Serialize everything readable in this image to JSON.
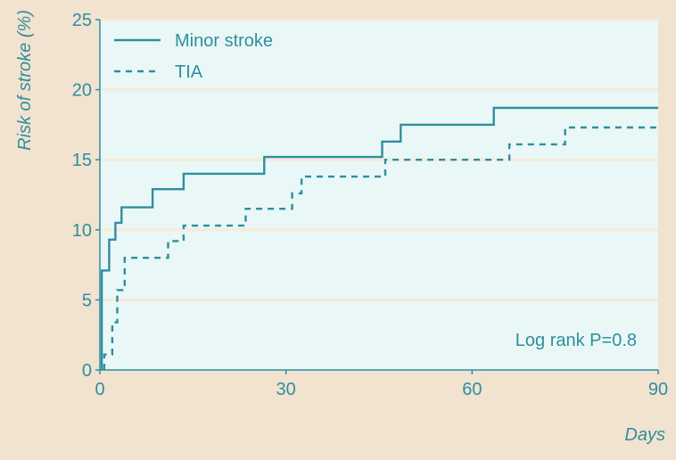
{
  "colors": {
    "background": "#f1e3cf",
    "plot_background": "#e9f8f6",
    "gridline": "#f6ead8",
    "axis": "#2f8ea0",
    "series_line": "#2f8ea0",
    "text": "#2f8ea0"
  },
  "chart_data": {
    "type": "line",
    "title": "",
    "xlabel": "Days",
    "ylabel": "Risk of stroke (%)",
    "xlim": [
      0,
      90
    ],
    "ylim": [
      0,
      25
    ],
    "x_ticks": [
      0,
      30,
      60,
      90
    ],
    "y_ticks": [
      0,
      5,
      10,
      15,
      20,
      25
    ],
    "grid": "horizontal",
    "legend_position": "top-left",
    "annotation": "Log rank P=0.8",
    "series": [
      {
        "name": "Minor stroke",
        "line_style": "solid",
        "points": [
          [
            0.3,
            0
          ],
          [
            0.3,
            7.1
          ],
          [
            1.5,
            7.1
          ],
          [
            1.5,
            9.3
          ],
          [
            2.5,
            9.3
          ],
          [
            2.5,
            10.5
          ],
          [
            3.5,
            10.5
          ],
          [
            3.5,
            11.6
          ],
          [
            8.5,
            11.6
          ],
          [
            8.5,
            12.9
          ],
          [
            13.5,
            12.9
          ],
          [
            13.5,
            14.0
          ],
          [
            26.5,
            14.0
          ],
          [
            26.5,
            15.2
          ],
          [
            45.5,
            15.2
          ],
          [
            45.5,
            16.3
          ],
          [
            48.5,
            16.3
          ],
          [
            48.5,
            17.5
          ],
          [
            63.5,
            17.5
          ],
          [
            63.5,
            18.7
          ],
          [
            90,
            18.7
          ]
        ]
      },
      {
        "name": "TIA",
        "line_style": "dashed",
        "points": [
          [
            0.7,
            0
          ],
          [
            0.7,
            1.1
          ],
          [
            2.0,
            1.1
          ],
          [
            2.0,
            3.4
          ],
          [
            2.8,
            3.4
          ],
          [
            2.8,
            5.7
          ],
          [
            4.0,
            5.7
          ],
          [
            4.0,
            8.0
          ],
          [
            11.0,
            8.0
          ],
          [
            11.0,
            9.2
          ],
          [
            13.5,
            9.2
          ],
          [
            13.5,
            10.3
          ],
          [
            23.5,
            10.3
          ],
          [
            23.5,
            11.5
          ],
          [
            31.0,
            11.5
          ],
          [
            31.0,
            12.6
          ],
          [
            32.5,
            12.6
          ],
          [
            32.5,
            13.8
          ],
          [
            46.0,
            13.8
          ],
          [
            46.0,
            15.0
          ],
          [
            66.0,
            15.0
          ],
          [
            66.0,
            16.1
          ],
          [
            75.0,
            16.1
          ],
          [
            75.0,
            17.3
          ],
          [
            90,
            17.3
          ]
        ]
      }
    ]
  }
}
